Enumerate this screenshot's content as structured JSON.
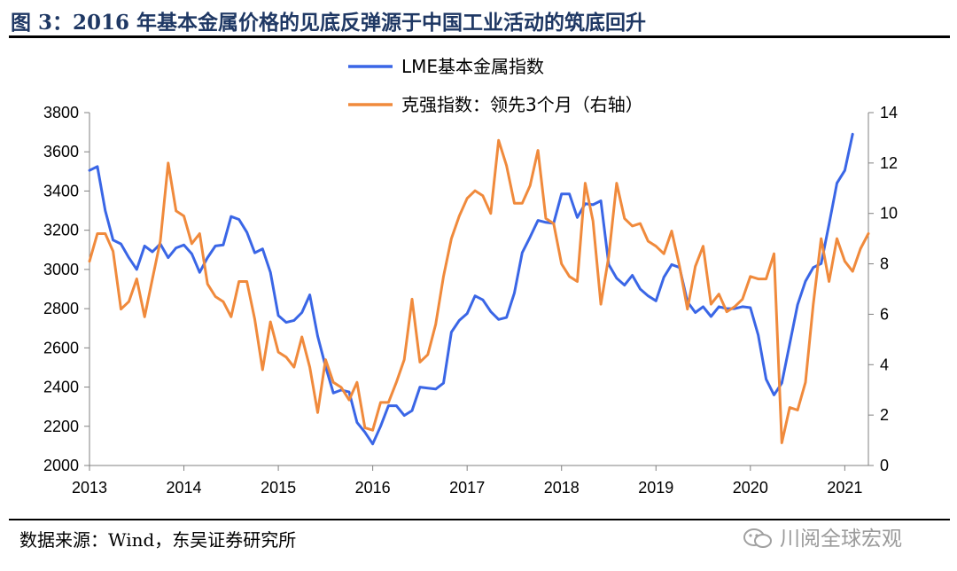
{
  "figure": {
    "title": "图 3：2016 年基本金属价格的见底反弹源于中国工业活动的筑底回升",
    "source": "数据来源：Wind，东吴证券研究所",
    "watermark": "川阅全球宏观",
    "watermark_icon": "wechat-icon"
  },
  "chart_data": {
    "type": "line",
    "title": "",
    "xlabel": "",
    "ylabel": "",
    "legend_position": "top-center",
    "grid": false,
    "x_ticks": [
      "2013",
      "2014",
      "2015",
      "2016",
      "2017",
      "2018",
      "2019",
      "2020",
      "2021"
    ],
    "x_range": [
      2013.0,
      2021.25
    ],
    "y_left": {
      "range": [
        2000,
        3800
      ],
      "ticks": [
        2000,
        2200,
        2400,
        2600,
        2800,
        3000,
        3200,
        3400,
        3600,
        3800
      ]
    },
    "y_right": {
      "range": [
        0,
        14
      ],
      "ticks": [
        0,
        2,
        4,
        6,
        8,
        10,
        12,
        14
      ]
    },
    "series": [
      {
        "name": "LME基本金属指数",
        "axis": "left",
        "color": "#3a66e6",
        "x_start": 2013.0,
        "step_months": 1,
        "values": [
          3505,
          3525,
          3300,
          3150,
          3130,
          3060,
          3000,
          3120,
          3090,
          3130,
          3060,
          3110,
          3125,
          3080,
          2985,
          3060,
          3120,
          3125,
          3270,
          3255,
          3190,
          3085,
          3105,
          2985,
          2765,
          2730,
          2740,
          2780,
          2870,
          2660,
          2505,
          2370,
          2385,
          2375,
          2220,
          2170,
          2110,
          2200,
          2305,
          2305,
          2255,
          2280,
          2400,
          2395,
          2390,
          2420,
          2680,
          2740,
          2775,
          2865,
          2845,
          2785,
          2745,
          2755,
          2880,
          3085,
          3165,
          3250,
          3240,
          3235,
          3385,
          3385,
          3265,
          3335,
          3330,
          3350,
          3025,
          2955,
          2920,
          2970,
          2900,
          2865,
          2840,
          2960,
          3025,
          3010,
          2835,
          2780,
          2810,
          2760,
          2810,
          2800,
          2800,
          2810,
          2805,
          2665,
          2440,
          2360,
          2420,
          2620,
          2820,
          2940,
          3010,
          3030,
          3230,
          3440,
          3505,
          3690
        ]
      },
      {
        "name": "克强指数：领先3个月（右轴）",
        "axis": "right",
        "color": "#f08a3c",
        "x_start": 2013.0,
        "step_months": 1,
        "values": [
          8.1,
          9.2,
          9.2,
          8.5,
          6.2,
          6.5,
          7.4,
          5.9,
          7.4,
          8.9,
          12.0,
          10.1,
          9.9,
          8.8,
          9.2,
          7.2,
          6.7,
          6.5,
          5.9,
          7.3,
          7.3,
          5.8,
          3.8,
          5.7,
          4.5,
          4.3,
          3.9,
          5.1,
          3.9,
          2.1,
          4.2,
          3.3,
          3.1,
          2.6,
          3.3,
          1.5,
          1.4,
          2.5,
          2.5,
          3.3,
          4.2,
          6.6,
          4.1,
          4.4,
          5.6,
          7.5,
          9.0,
          9.9,
          10.6,
          10.9,
          10.7,
          10.0,
          12.9,
          11.9,
          10.4,
          10.4,
          11.1,
          12.5,
          9.8,
          9.6,
          8.0,
          7.5,
          7.3,
          11.2,
          9.7,
          6.4,
          8.3,
          11.2,
          9.8,
          9.5,
          9.6,
          8.9,
          8.7,
          8.4,
          9.3,
          7.9,
          6.2,
          7.9,
          8.7,
          6.4,
          6.8,
          6.1,
          6.3,
          6.6,
          7.5,
          7.4,
          7.4,
          8.4,
          0.9,
          2.3,
          2.2,
          3.3,
          6.4,
          9.0,
          7.3,
          9.0,
          8.1,
          7.7,
          8.6,
          9.2
        ]
      }
    ]
  }
}
